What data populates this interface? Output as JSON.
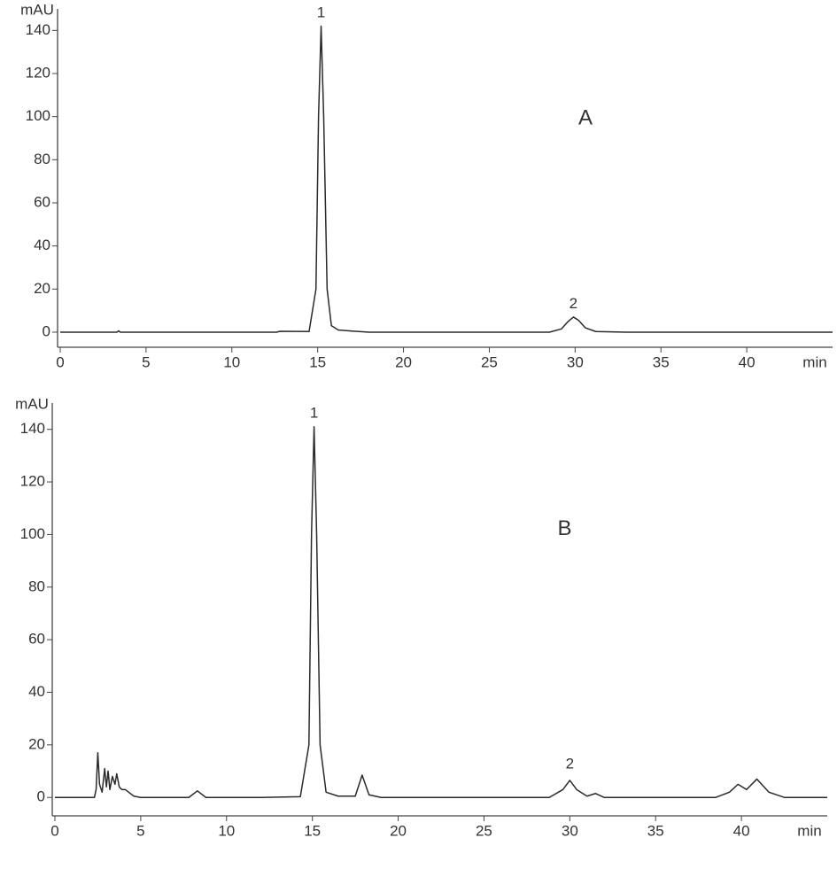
{
  "chart_data": [
    {
      "type": "line",
      "y_label": "mAU",
      "x_label": "min",
      "color": "#2a2a2a",
      "xlim": [
        0,
        45
      ],
      "ylim": [
        -7,
        150
      ],
      "xticks": [
        0,
        5,
        10,
        15,
        20,
        25,
        30,
        35,
        40
      ],
      "yticks": [
        0,
        20,
        40,
        60,
        80,
        100,
        120,
        140
      ],
      "x": [
        0,
        3.3,
        3.4,
        3.5,
        12,
        12.6,
        12.8,
        14.5,
        14.9,
        15.05,
        15.2,
        15.35,
        15.55,
        15.8,
        16.2,
        17,
        18,
        28.5,
        29.2,
        29.6,
        29.9,
        30.2,
        30.6,
        31.2,
        33,
        45
      ],
      "values": [
        0,
        0,
        0.6,
        0,
        0,
        0,
        0.4,
        0.3,
        20,
        100,
        142,
        100,
        20,
        3,
        1,
        0.5,
        0,
        0,
        1.5,
        5,
        7,
        5.5,
        2,
        0.3,
        0,
        0
      ],
      "annotations": [
        {
          "text": "1",
          "x": 15.2,
          "y": 148
        },
        {
          "text": "2",
          "x": 29.9,
          "y": 13
        },
        {
          "text": "A",
          "x": 30.6,
          "y": 99
        }
      ]
    },
    {
      "type": "line",
      "y_label": "mAU",
      "x_label": "min",
      "color": "#2a2a2a",
      "xlim": [
        0,
        45
      ],
      "ylim": [
        -7,
        150
      ],
      "xticks": [
        0,
        5,
        10,
        15,
        20,
        25,
        30,
        35,
        40
      ],
      "yticks": [
        0,
        20,
        40,
        60,
        80,
        100,
        120,
        140
      ],
      "x": [
        0,
        2.3,
        2.4,
        2.5,
        2.6,
        2.75,
        2.9,
        3.0,
        3.1,
        3.2,
        3.35,
        3.5,
        3.6,
        3.75,
        3.9,
        4.1,
        4.3,
        4.6,
        5,
        7.8,
        8.3,
        8.8,
        12,
        14.3,
        14.8,
        14.95,
        15.1,
        15.25,
        15.45,
        15.8,
        16.5,
        17.5,
        17.9,
        18.3,
        19,
        28.8,
        29.6,
        30,
        30.4,
        31,
        31.5,
        32,
        38.5,
        39.3,
        39.8,
        40.3,
        40.9,
        41.6,
        42.5,
        45
      ],
      "values": [
        0,
        0,
        3,
        17,
        5,
        2,
        11,
        4,
        10,
        3,
        8,
        5,
        9,
        4,
        3,
        3,
        2,
        0.5,
        0,
        0,
        2.5,
        0,
        0,
        0.3,
        20,
        100,
        141,
        100,
        20,
        2,
        0.5,
        0.5,
        8.5,
        1,
        0,
        0,
        3,
        6.5,
        3,
        0.5,
        1.5,
        0,
        0,
        2,
        5,
        3,
        7,
        2,
        0,
        0
      ],
      "annotations": [
        {
          "text": "1",
          "x": 15.1,
          "y": 146
        },
        {
          "text": "2",
          "x": 30,
          "y": 12.5
        },
        {
          "text": "B",
          "x": 29.7,
          "y": 102
        }
      ]
    }
  ]
}
